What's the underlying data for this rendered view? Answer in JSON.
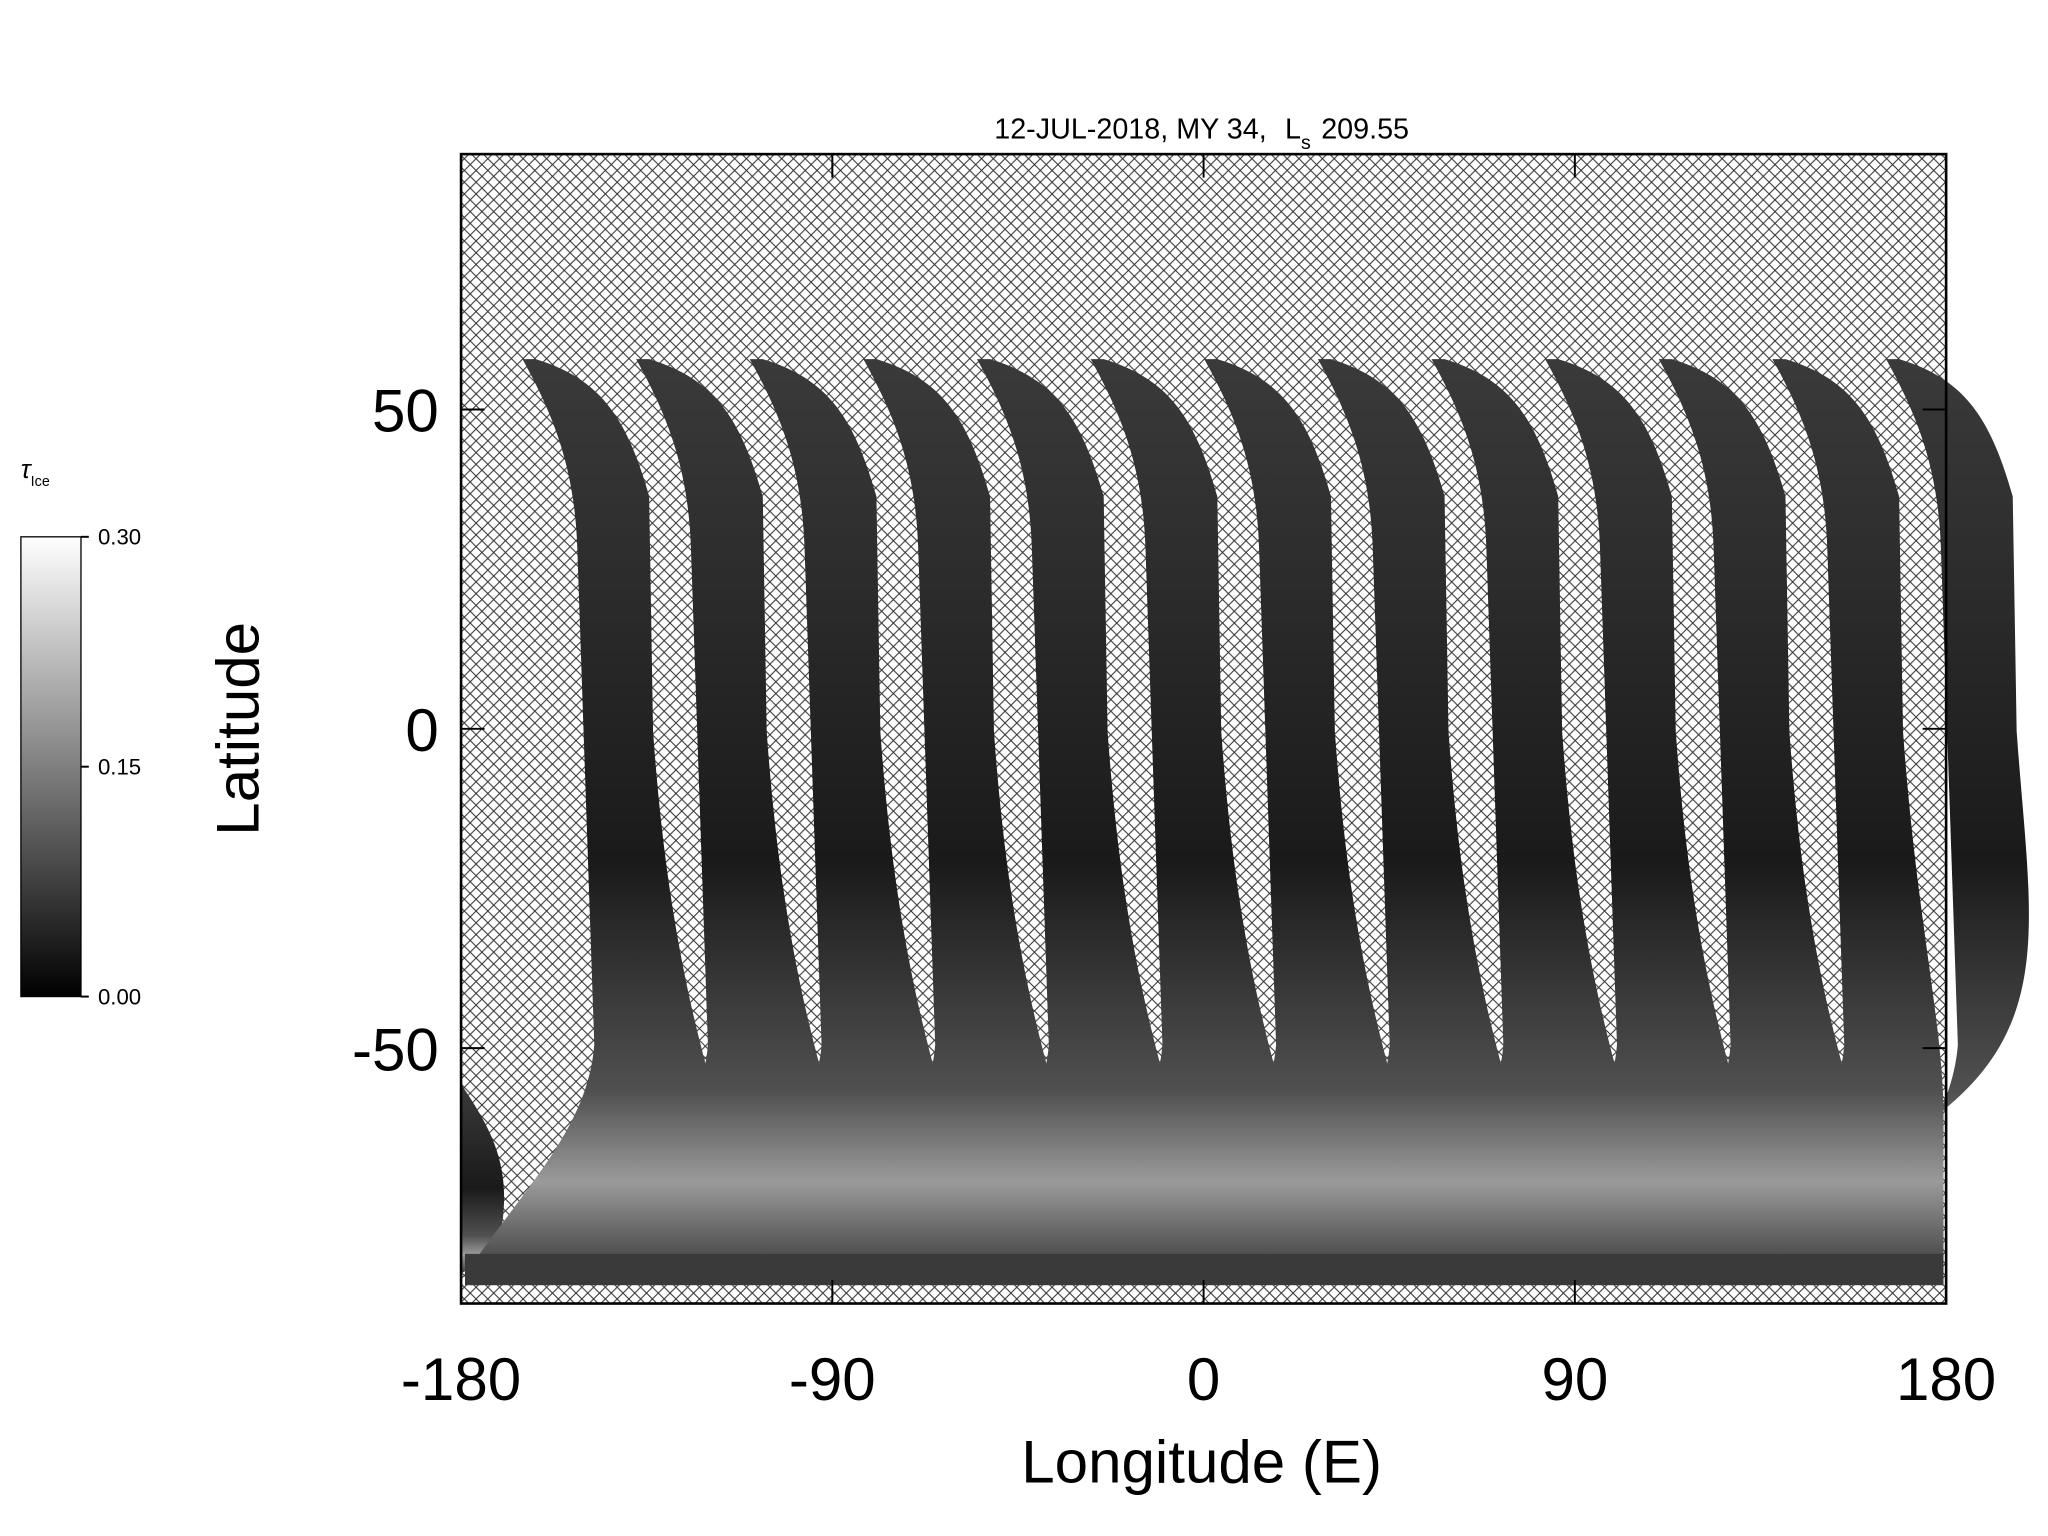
{
  "chart_data": {
    "type": "map",
    "title": {
      "date": "12-JUL-2018, MY 34,",
      "ls_symbol": "L",
      "ls_sub": "s",
      "ls_value": "209.55"
    },
    "x_label": "Longitude (E)",
    "y_label": "Latitude",
    "xlim": [
      -180,
      180
    ],
    "xticks": [
      -180,
      -90,
      0,
      90,
      180
    ],
    "ylim": [
      -90,
      90
    ],
    "yticks": [
      -50,
      0,
      50
    ],
    "colorbar": {
      "label_symbol": "τ",
      "label_sub": "Ice",
      "lim": [
        0,
        0.3
      ],
      "ticks": [
        {
          "value": 0.3,
          "label": "0.30"
        },
        {
          "value": 0.15,
          "label": "0.15"
        },
        {
          "value": 0,
          "label": "0.00"
        }
      ]
    }
  }
}
